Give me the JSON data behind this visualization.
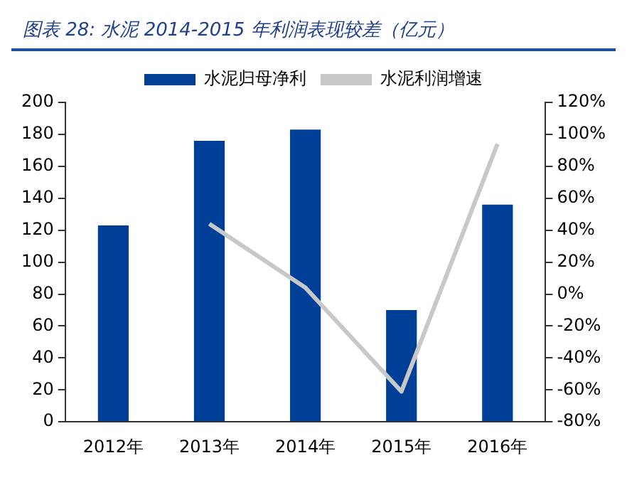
{
  "chart_data": {
    "type": "bar",
    "title": "图表 28: 水泥 2014-2015 年利润表现较差（亿元）",
    "categories": [
      "2012年",
      "2013年",
      "2014年",
      "2015年",
      "2016年"
    ],
    "series": [
      {
        "name": "水泥归母净利",
        "color": "#003f98",
        "values": [
          123,
          176,
          183,
          70,
          136
        ]
      },
      {
        "name": "水泥利润增速",
        "type": "line",
        "axis": "y2",
        "color": "#c8c8c8",
        "values": [
          null,
          44,
          4,
          -61,
          94
        ]
      }
    ],
    "ylim": [
      0,
      200
    ],
    "yticks": [
      0,
      20,
      40,
      60,
      80,
      100,
      120,
      140,
      160,
      180,
      200
    ],
    "y2lim": [
      -80,
      120
    ],
    "y2ticks": [
      {
        "value": -80,
        "label": "-80%"
      },
      {
        "value": -60,
        "label": "-60%"
      },
      {
        "value": -40,
        "label": "-40%"
      },
      {
        "value": -20,
        "label": "-20%"
      },
      {
        "value": 0,
        "label": "0%"
      },
      {
        "value": 20,
        "label": "20%"
      },
      {
        "value": 40,
        "label": "40%"
      },
      {
        "value": 60,
        "label": "60%"
      },
      {
        "value": 80,
        "label": "80%"
      },
      {
        "value": 100,
        "label": "100%"
      },
      {
        "value": 120,
        "label": "120%"
      }
    ],
    "grid": false,
    "legend": "top",
    "marker": "none",
    "line_style": "solid"
  }
}
